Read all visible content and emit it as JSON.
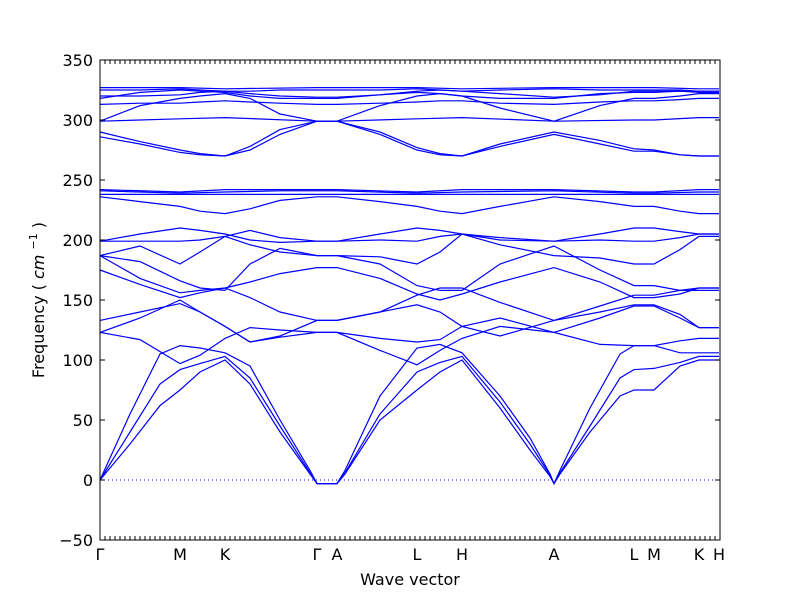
{
  "chart_data": {
    "type": "line",
    "title": "",
    "xlabel": "Wave vector",
    "ylabel": "Frequency",
    "ylabel_unit": "cm",
    "ylabel_unit_exp": "−1",
    "ylim": [
      -50,
      350
    ],
    "yticks": [
      -50,
      0,
      50,
      100,
      150,
      200,
      250,
      300,
      350
    ],
    "grid": false,
    "legend": "none",
    "color": "#0000ff",
    "x_range": [
      0,
      6.2
    ],
    "high_symmetry_points": [
      {
        "label": "Γ",
        "x": 0.0
      },
      {
        "label": "M",
        "x": 0.8
      },
      {
        "label": "K",
        "x": 1.25
      },
      {
        "label": "Γ",
        "x": 2.17
      },
      {
        "label": "A",
        "x": 2.37
      },
      {
        "label": "L",
        "x": 3.17
      },
      {
        "label": "H",
        "x": 3.62
      },
      {
        "label": "A",
        "x": 4.54
      },
      {
        "label": "L",
        "x": 5.34
      },
      {
        "label": "M",
        "x": 5.54
      },
      {
        "label": "K",
        "x": 5.99
      },
      {
        "label": "H",
        "x": 6.19
      }
    ],
    "series": [
      {
        "x": [
          0,
          0.3,
          0.6,
          0.8,
          1.0,
          1.25,
          1.5,
          1.8,
          2.1,
          2.17,
          2.37,
          2.45,
          2.8,
          3.17,
          3.4,
          3.62,
          4.0,
          4.3,
          4.5,
          4.54,
          4.6,
          4.9,
          5.2,
          5.34,
          5.54,
          5.8,
          5.99,
          6.19
        ],
        "y": [
          0,
          30,
          62,
          75,
          90,
          100,
          80,
          40,
          5,
          -3,
          -3,
          5,
          50,
          75,
          90,
          100,
          60,
          25,
          3,
          -3,
          5,
          40,
          70,
          75,
          75,
          95,
          100,
          100
        ]
      },
      {
        "x": [
          0,
          0.3,
          0.6,
          0.8,
          1.0,
          1.25,
          1.5,
          1.8,
          2.1,
          2.17,
          2.37,
          2.45,
          2.8,
          3.17,
          3.4,
          3.62,
          4.0,
          4.3,
          4.5,
          4.54,
          4.6,
          4.9,
          5.2,
          5.34,
          5.54,
          5.8,
          5.99,
          6.19
        ],
        "y": [
          0,
          40,
          80,
          92,
          97,
          103,
          85,
          45,
          6,
          -3,
          -3,
          6,
          55,
          90,
          98,
          103,
          65,
          30,
          4,
          -3,
          6,
          45,
          85,
          92,
          93,
          98,
          103,
          103
        ]
      },
      {
        "x": [
          0,
          0.3,
          0.6,
          0.8,
          1.0,
          1.25,
          1.5,
          1.8,
          2.1,
          2.17,
          2.37,
          2.45,
          2.8,
          3.17,
          3.4,
          3.62,
          4.0,
          4.3,
          4.5,
          4.54,
          4.6,
          4.9,
          5.2,
          5.34,
          5.54,
          5.8,
          5.99,
          6.19
        ],
        "y": [
          0,
          55,
          105,
          112,
          110,
          106,
          95,
          50,
          8,
          -3,
          -3,
          8,
          70,
          110,
          113,
          106,
          70,
          35,
          5,
          -3,
          8,
          60,
          105,
          112,
          112,
          106,
          106,
          106
        ]
      },
      {
        "x": [
          0,
          0.4,
          0.8,
          1.0,
          1.25,
          1.5,
          1.8,
          2.17,
          2.37,
          2.8,
          3.17,
          3.4,
          3.62,
          4.0,
          4.54,
          5.0,
          5.34,
          5.54,
          5.8,
          5.99,
          6.19
        ],
        "y": [
          123,
          117,
          97,
          104,
          118,
          127,
          125,
          123,
          123,
          108,
          96,
          108,
          118,
          128,
          123,
          113,
          112,
          112,
          116,
          118,
          118
        ]
      },
      {
        "x": [
          0,
          0.4,
          0.8,
          1.0,
          1.25,
          1.5,
          1.8,
          2.17,
          2.37,
          2.8,
          3.17,
          3.4,
          3.62,
          4.0,
          4.54,
          5.0,
          5.34,
          5.54,
          5.8,
          5.99,
          6.19
        ],
        "y": [
          123,
          135,
          150,
          140,
          128,
          115,
          119,
          123,
          123,
          118,
          115,
          117,
          128,
          135,
          123,
          135,
          145,
          145,
          135,
          127,
          127
        ]
      },
      {
        "x": [
          0,
          0.4,
          0.8,
          1.0,
          1.25,
          1.5,
          1.8,
          2.17,
          2.37,
          2.8,
          3.17,
          3.4,
          3.62,
          4.0,
          4.54,
          5.0,
          5.34,
          5.54,
          5.8,
          5.99,
          6.19
        ],
        "y": [
          133,
          140,
          147,
          140,
          128,
          115,
          120,
          133,
          133,
          140,
          146,
          140,
          128,
          120,
          133,
          140,
          146,
          146,
          138,
          127,
          127
        ]
      },
      {
        "x": [
          0,
          0.4,
          0.8,
          1.0,
          1.25,
          1.5,
          1.8,
          2.17,
          2.37,
          2.8,
          3.17,
          3.4,
          3.62,
          4.0,
          4.54,
          5.0,
          5.34,
          5.54,
          5.8,
          5.99,
          6.19
        ],
        "y": [
          175,
          163,
          152,
          156,
          160,
          165,
          172,
          177,
          177,
          168,
          155,
          150,
          155,
          165,
          177,
          165,
          152,
          152,
          155,
          160,
          160
        ]
      },
      {
        "x": [
          0,
          0.4,
          0.8,
          1.0,
          1.25,
          1.5,
          1.8,
          2.17,
          2.37,
          2.8,
          3.17,
          3.4,
          3.62,
          4.0,
          4.54,
          5.0,
          5.34,
          5.54,
          5.8,
          5.99,
          6.19
        ],
        "y": [
          187,
          168,
          156,
          158,
          160,
          152,
          140,
          133,
          133,
          140,
          154,
          160,
          160,
          148,
          133,
          145,
          154,
          154,
          158,
          160,
          160
        ]
      },
      {
        "x": [
          0,
          0.4,
          0.8,
          1.0,
          1.25,
          1.5,
          1.8,
          2.17,
          2.37,
          2.8,
          3.17,
          3.4,
          3.62,
          4.0,
          4.54,
          5.0,
          5.34,
          5.54,
          5.8,
          5.99,
          6.19
        ],
        "y": [
          187,
          182,
          166,
          160,
          158,
          180,
          193,
          187,
          187,
          180,
          162,
          158,
          158,
          180,
          195,
          175,
          162,
          162,
          158,
          158,
          158
        ]
      },
      {
        "x": [
          0,
          0.4,
          0.8,
          1.0,
          1.25,
          1.5,
          1.8,
          2.17,
          2.37,
          2.8,
          3.17,
          3.4,
          3.62,
          4.0,
          4.54,
          5.0,
          5.34,
          5.54,
          5.8,
          5.99,
          6.19
        ],
        "y": [
          187,
          195,
          180,
          190,
          203,
          196,
          190,
          187,
          187,
          186,
          180,
          190,
          205,
          196,
          187,
          185,
          180,
          180,
          192,
          203,
          203
        ]
      },
      {
        "x": [
          0,
          0.4,
          0.8,
          1.0,
          1.25,
          1.5,
          1.8,
          2.17,
          2.37,
          2.8,
          3.17,
          3.4,
          3.62,
          4.0,
          4.54,
          5.0,
          5.34,
          5.54,
          5.8,
          5.99,
          6.19
        ],
        "y": [
          199,
          199,
          199,
          200,
          203,
          208,
          202,
          199,
          199,
          200,
          199,
          203,
          205,
          200,
          199,
          200,
          199,
          199,
          202,
          205,
          205
        ]
      },
      {
        "x": [
          0,
          0.4,
          0.8,
          1.0,
          1.25,
          1.5,
          1.8,
          2.17,
          2.37,
          2.8,
          3.17,
          3.4,
          3.62,
          4.0,
          4.54,
          5.0,
          5.34,
          5.54,
          5.8,
          5.99,
          6.19
        ],
        "y": [
          199,
          205,
          210,
          208,
          205,
          200,
          198,
          199,
          199,
          205,
          210,
          208,
          205,
          202,
          199,
          205,
          210,
          210,
          207,
          205,
          205
        ]
      },
      {
        "x": [
          0,
          0.4,
          0.8,
          1.0,
          1.25,
          1.5,
          1.8,
          2.17,
          2.37,
          2.8,
          3.17,
          3.4,
          3.62,
          4.0,
          4.54,
          5.0,
          5.34,
          5.54,
          5.8,
          5.99,
          6.19
        ],
        "y": [
          236,
          232,
          228,
          224,
          222,
          226,
          233,
          236,
          236,
          232,
          228,
          224,
          222,
          228,
          236,
          232,
          228,
          228,
          224,
          222,
          222
        ]
      },
      {
        "x": [
          0,
          0.8,
          1.25,
          1.8,
          2.17,
          2.37,
          3.17,
          3.62,
          4.54,
          5.34,
          5.54,
          5.99,
          6.19
        ],
        "y": [
          238,
          238,
          238,
          238,
          238,
          238,
          238,
          238,
          238,
          238,
          238,
          238,
          238
        ]
      },
      {
        "x": [
          0,
          0.8,
          1.25,
          1.8,
          2.17,
          2.37,
          3.17,
          3.62,
          4.54,
          5.34,
          5.54,
          5.99,
          6.19
        ],
        "y": [
          241,
          239,
          240,
          241,
          241,
          241,
          239,
          240,
          241,
          239,
          239,
          240,
          240
        ]
      },
      {
        "x": [
          0,
          0.8,
          1.25,
          1.8,
          2.17,
          2.37,
          3.17,
          3.62,
          4.54,
          5.34,
          5.54,
          5.99,
          6.19
        ],
        "y": [
          242,
          240,
          242,
          242,
          242,
          242,
          240,
          242,
          242,
          240,
          240,
          242,
          242
        ]
      },
      {
        "x": [
          0,
          0.4,
          0.8,
          1.0,
          1.25,
          1.5,
          1.8,
          2.17,
          2.37,
          2.8,
          3.17,
          3.4,
          3.62,
          4.0,
          4.54,
          5.0,
          5.34,
          5.54,
          5.8,
          5.99,
          6.19
        ],
        "y": [
          290,
          282,
          275,
          272,
          270,
          278,
          292,
          299,
          299,
          290,
          277,
          272,
          270,
          280,
          290,
          283,
          276,
          275,
          271,
          270,
          270
        ]
      },
      {
        "x": [
          0,
          0.4,
          0.8,
          1.0,
          1.25,
          1.5,
          1.8,
          2.17,
          2.37,
          2.8,
          3.17,
          3.4,
          3.62,
          4.0,
          4.54,
          5.0,
          5.34,
          5.54,
          5.8,
          5.99,
          6.19
        ],
        "y": [
          286,
          280,
          273,
          271,
          270,
          275,
          288,
          299,
          299,
          288,
          275,
          271,
          270,
          278,
          288,
          280,
          274,
          274,
          271,
          270,
          270
        ]
      },
      {
        "x": [
          0,
          0.8,
          1.25,
          2.17,
          2.37,
          3.17,
          3.62,
          4.54,
          5.34,
          5.54,
          5.99,
          6.19
        ],
        "y": [
          299,
          301,
          302,
          299,
          299,
          301,
          302,
          299,
          300,
          300,
          302,
          302
        ]
      },
      {
        "x": [
          0,
          0.4,
          0.8,
          1.0,
          1.25,
          1.5,
          1.8,
          2.17,
          2.37,
          2.8,
          3.17,
          3.4,
          3.62,
          4.0,
          4.54,
          5.0,
          5.34,
          5.54,
          5.8,
          5.99,
          6.19
        ],
        "y": [
          299,
          312,
          318,
          320,
          322,
          318,
          305,
          299,
          299,
          312,
          320,
          322,
          320,
          310,
          299,
          312,
          318,
          318,
          320,
          322,
          322
        ]
      },
      {
        "x": [
          0,
          0.4,
          0.8,
          1.0,
          1.25,
          1.5,
          1.8,
          2.17,
          2.37,
          2.8,
          3.17,
          3.4,
          3.62,
          4.0,
          4.54,
          5.0,
          5.34,
          5.54,
          5.8,
          5.99,
          6.19
        ],
        "y": [
          313,
          314,
          314,
          315,
          316,
          315,
          314,
          313,
          313,
          314,
          315,
          316,
          316,
          314,
          313,
          315,
          316,
          316,
          317,
          318,
          318
        ]
      },
      {
        "x": [
          0,
          0.4,
          0.8,
          1.0,
          1.25,
          1.5,
          1.8,
          2.17,
          2.37,
          2.8,
          3.17,
          3.4,
          3.62,
          4.0,
          4.54,
          5.0,
          5.34,
          5.54,
          5.8,
          5.99,
          6.19
        ],
        "y": [
          318,
          323,
          325,
          324,
          323,
          320,
          318,
          318,
          318,
          321,
          323,
          322,
          320,
          318,
          318,
          322,
          323,
          323,
          324,
          323,
          323
        ]
      },
      {
        "x": [
          0,
          0.4,
          0.8,
          1.0,
          1.25,
          1.5,
          1.8,
          2.17,
          2.37,
          2.8,
          3.17,
          3.4,
          3.62,
          4.0,
          4.54,
          5.0,
          5.34,
          5.54,
          5.8,
          5.99,
          6.19
        ],
        "y": [
          320,
          320,
          321,
          323,
          324,
          322,
          320,
          319,
          319,
          321,
          324,
          325,
          324,
          322,
          319,
          321,
          324,
          324,
          324,
          324,
          324
        ]
      },
      {
        "x": [
          0,
          0.4,
          0.8,
          1.0,
          1.25,
          1.5,
          1.8,
          2.17,
          2.37,
          2.8,
          3.17,
          3.4,
          3.62,
          4.0,
          4.54,
          5.0,
          5.34,
          5.54,
          5.8,
          5.99,
          6.19
        ],
        "y": [
          325,
          325,
          326,
          325,
          324,
          324,
          325,
          325,
          325,
          325,
          326,
          325,
          324,
          325,
          326,
          325,
          325,
          325,
          325,
          324,
          324
        ]
      },
      {
        "x": [
          0,
          0.8,
          1.25,
          2.17,
          2.37,
          3.17,
          3.62,
          4.54,
          5.34,
          5.54,
          5.99,
          6.19
        ],
        "y": [
          327,
          327,
          326,
          327,
          327,
          327,
          326,
          327,
          327,
          327,
          326,
          326
        ]
      }
    ]
  }
}
